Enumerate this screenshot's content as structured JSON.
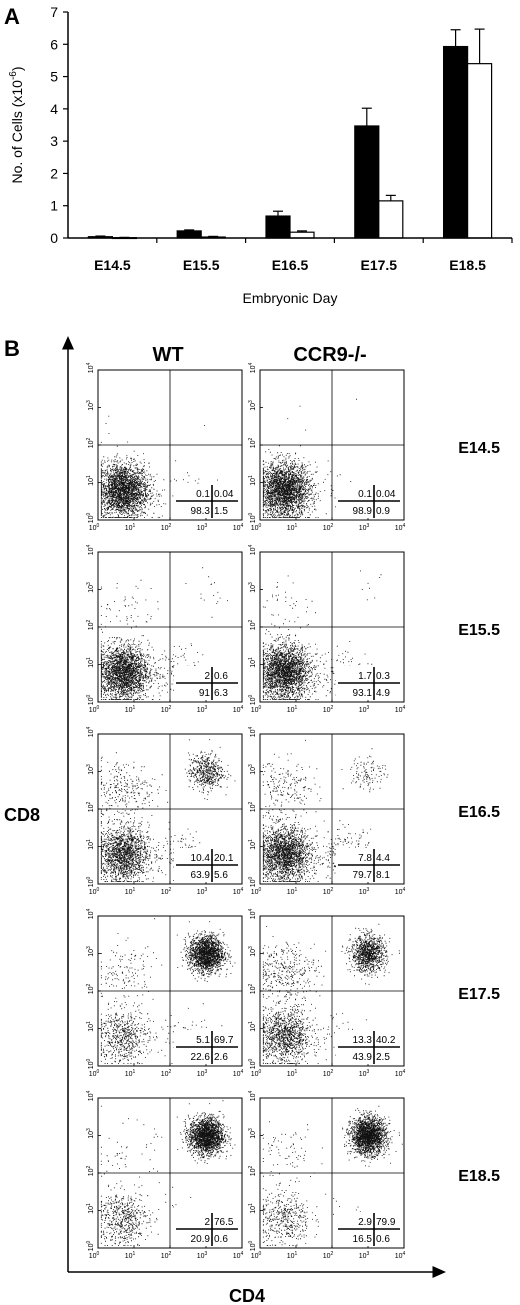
{
  "chart_data": [
    {
      "type": "bar",
      "panel_label": "A",
      "categories": [
        "E14.5",
        "E15.5",
        "E16.5",
        "E17.5",
        "E18.5"
      ],
      "xlabel": "Embryonic Day",
      "ylabel": "No. of Cells (x10",
      "ylabel_exp": "-6",
      "ylabel_close": ")",
      "ylim": [
        0,
        7
      ],
      "yticks": [
        "0",
        "1",
        "2",
        "3",
        "4",
        "5",
        "6",
        "7"
      ],
      "series": [
        {
          "color": "#000000",
          "values": [
            0.04,
            0.22,
            0.68,
            3.47,
            5.93
          ],
          "errors": [
            0.02,
            0.03,
            0.15,
            0.55,
            0.52
          ]
        },
        {
          "color": "#ffffff",
          "values": [
            0.01,
            0.03,
            0.18,
            1.15,
            5.4
          ],
          "errors": [
            0.01,
            0.02,
            0.04,
            0.17,
            1.07
          ]
        }
      ]
    },
    {
      "type": "scatter",
      "panel_label": "B",
      "columns": [
        "WT",
        "CCR9-/-"
      ],
      "ylabel": "CD8",
      "xlabel": "CD4",
      "axis_tick_labels": [
        "10",
        "10",
        "10",
        "10",
        "10"
      ],
      "axis_tick_exponents": [
        "0",
        "1",
        "2",
        "3",
        "4"
      ],
      "rows": [
        {
          "label": "E14.5",
          "quadrants": [
            {
              "ul": "0.1",
              "ur": "0.04",
              "ll": "98.3",
              "lr": "1.5"
            },
            {
              "ul": "0.1",
              "ur": "0.04",
              "ll": "98.9",
              "lr": "0.9"
            }
          ]
        },
        {
          "label": "E15.5",
          "quadrants": [
            {
              "ul": "2",
              "ur": "0.6",
              "ll": "91",
              "lr": "6.3"
            },
            {
              "ul": "1.7",
              "ur": "0.3",
              "ll": "93.1",
              "lr": "4.9"
            }
          ]
        },
        {
          "label": "E16.5",
          "quadrants": [
            {
              "ul": "10.4",
              "ur": "20.1",
              "ll": "63.9",
              "lr": "5.6"
            },
            {
              "ul": "7.8",
              "ur": "4.4",
              "ll": "79.7",
              "lr": "8.1"
            }
          ]
        },
        {
          "label": "E17.5",
          "quadrants": [
            {
              "ul": "5.1",
              "ur": "69.7",
              "ll": "22.6",
              "lr": "2.6"
            },
            {
              "ul": "13.3",
              "ur": "40.2",
              "ll": "43.9",
              "lr": "2.5"
            }
          ]
        },
        {
          "label": "E18.5",
          "quadrants": [
            {
              "ul": "2",
              "ur": "76.5",
              "ll": "20.9",
              "lr": "0.6"
            },
            {
              "ul": "2.9",
              "ur": "79.9",
              "ll": "16.5",
              "lr": "0.6"
            }
          ]
        }
      ]
    }
  ]
}
